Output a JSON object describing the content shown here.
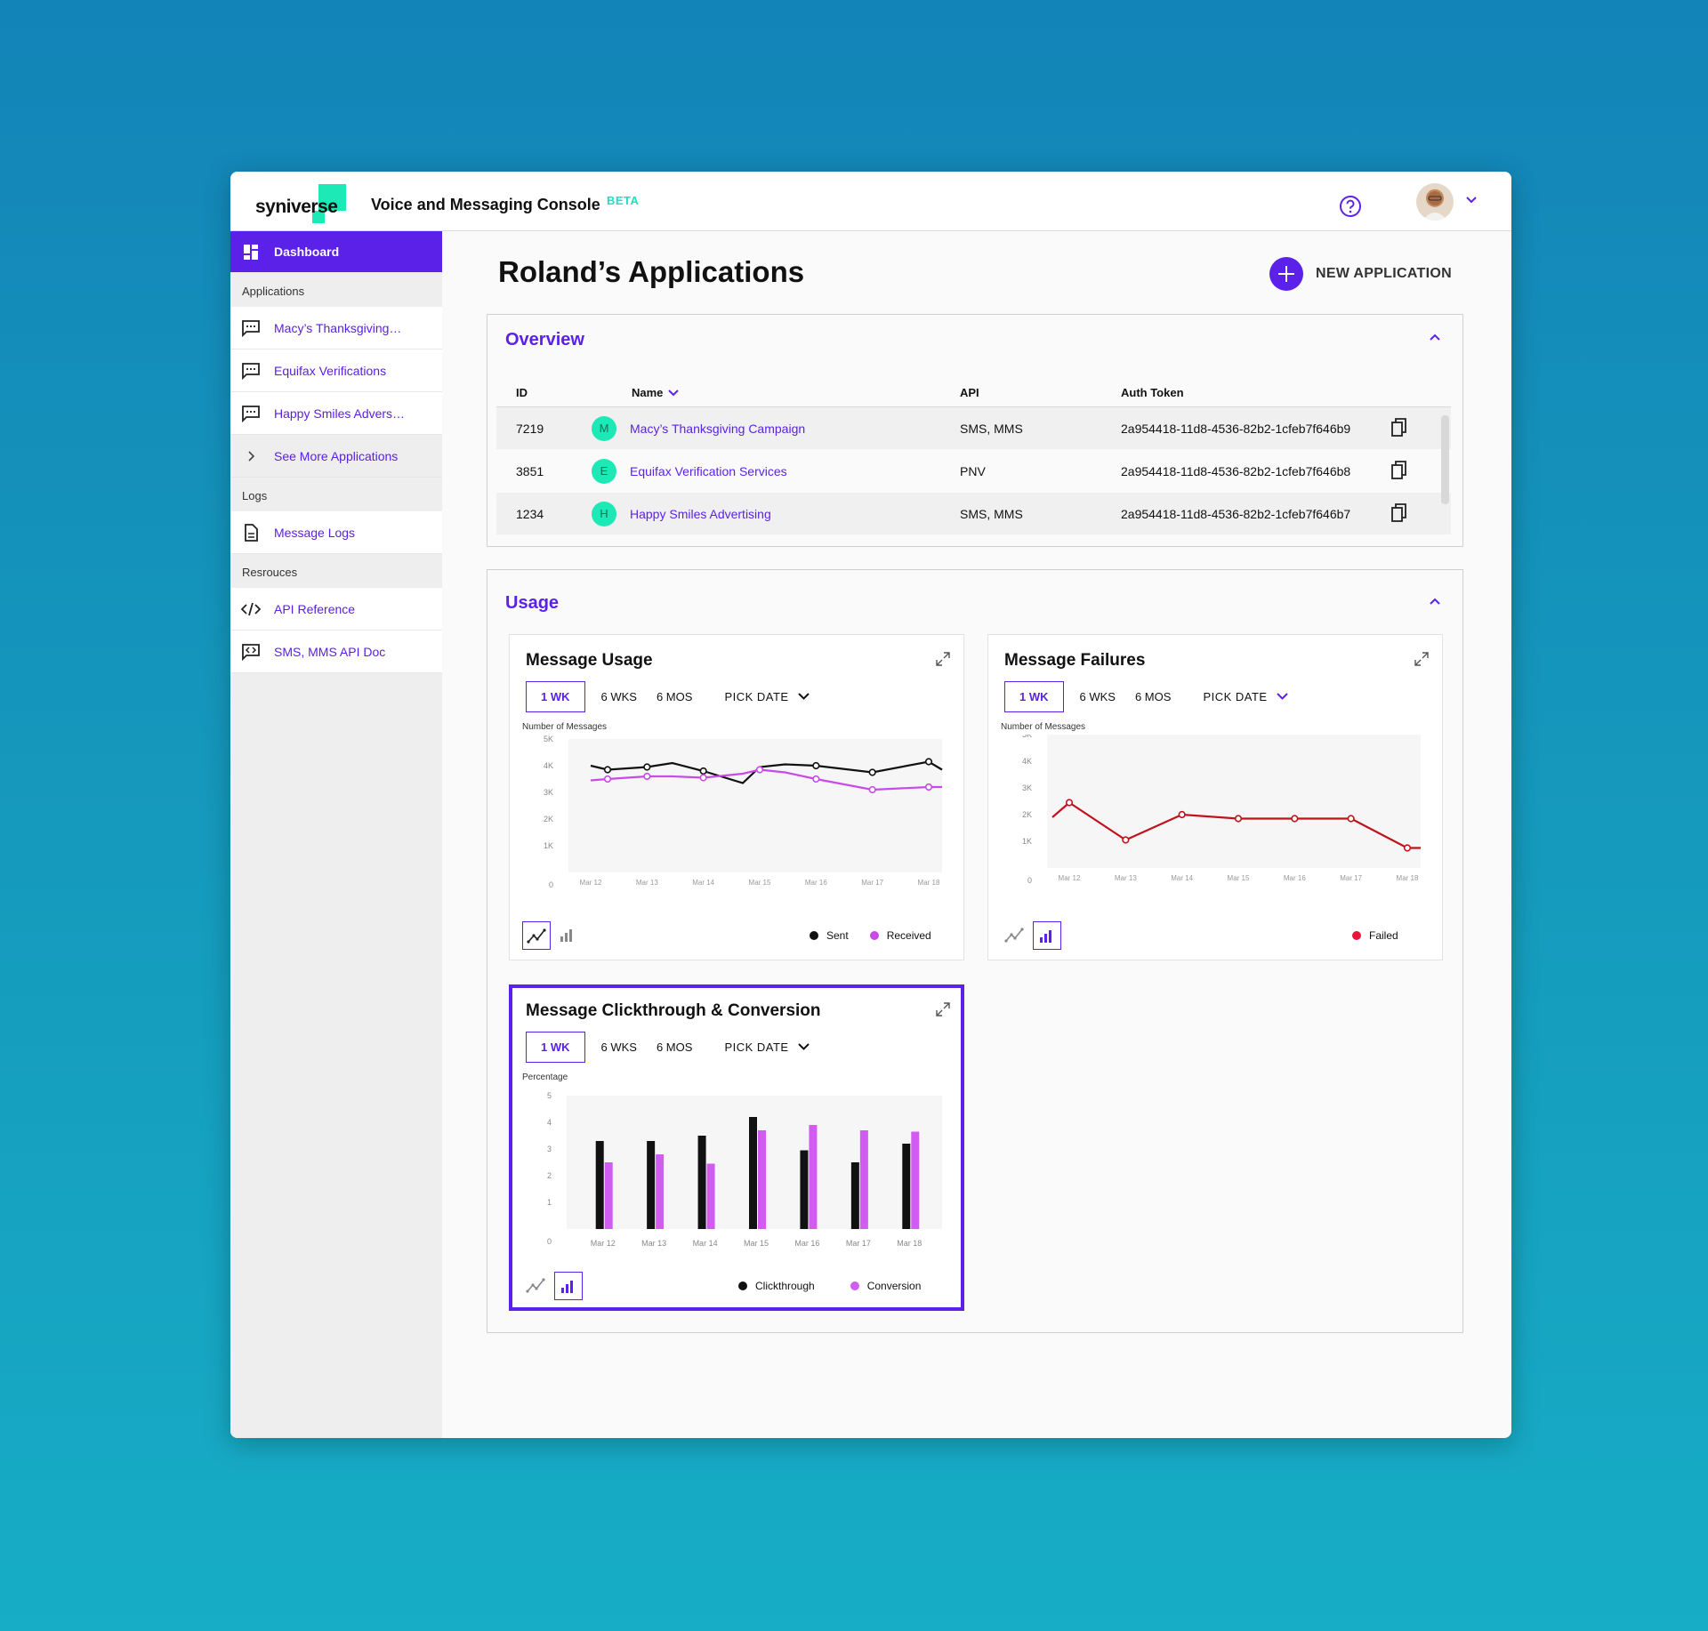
{
  "header": {
    "logo_text": "syniverse",
    "app_title": "Voice and Messaging Console",
    "beta_label": "BETA"
  },
  "sidebar": {
    "dashboard_label": "Dashboard",
    "applications_section": "Applications",
    "apps": [
      "Macy’s Thanksgiving…",
      "Equifax Verifications",
      "Happy Smiles Advers…"
    ],
    "see_more_label": "See More Applications",
    "logs_section": "Logs",
    "message_logs_label": "Message Logs",
    "resources_section": "Resrouces",
    "api_reference_label": "API Reference",
    "api_doc_label": "SMS, MMS API Doc"
  },
  "main": {
    "page_title": "Roland’s Applications",
    "new_app_label": "NEW APPLICATION"
  },
  "overview": {
    "title": "Overview",
    "columns": {
      "id": "ID",
      "name": "Name",
      "api": "API",
      "token": "Auth Token"
    },
    "rows": [
      {
        "id": "7219",
        "initial": "M",
        "name": "Macy’s Thanksgiving Campaign",
        "api": "SMS, MMS",
        "token": "2a954418-11d8-4536-82b2-1cfeb7f646b9"
      },
      {
        "id": "3851",
        "initial": "E",
        "name": "Equifax Verification Services",
        "api": "PNV",
        "token": "2a954418-11d8-4536-82b2-1cfeb7f646b8"
      },
      {
        "id": "1234",
        "initial": "H",
        "name": "Happy Smiles Advertising",
        "api": "SMS, MMS",
        "token": "2a954418-11d8-4536-82b2-1cfeb7f646b7"
      }
    ]
  },
  "usage": {
    "title": "Usage",
    "range_options": [
      "1 WK",
      "6 WKS",
      "6 MOS"
    ],
    "pick_date_label": "PICK DATE",
    "message_usage": {
      "title": "Message Usage",
      "y_axis_title": "Number of Messages",
      "legend": [
        "Sent",
        "Received"
      ]
    },
    "message_failures": {
      "title": "Message Failures",
      "y_axis_title": "Number of Messages",
      "legend": [
        "Failed"
      ]
    },
    "clickthrough": {
      "title": "Message Clickthrough & Conversion",
      "y_axis_title": "Percentage",
      "legend": [
        "Clickthrough",
        "Conversion"
      ]
    }
  },
  "colors": {
    "accent": "#5b21e8",
    "teal": "#1de9b6",
    "sent": "#111111",
    "received": "#c84be8",
    "failed": "#c0121b",
    "failed_legend": "#e8173a",
    "conversion": "#d15cf0"
  },
  "chart_data": [
    {
      "type": "line",
      "title": "Message Usage",
      "ylabel": "Number of Messages",
      "ylim": [
        0,
        5000
      ],
      "yticks": [
        "0",
        "1K",
        "2K",
        "3K",
        "4K",
        "5K"
      ],
      "categories": [
        "Mar 12",
        "Mar 13",
        "Mar 14",
        "Mar 15",
        "Mar 16",
        "Mar 17",
        "Mar 18"
      ],
      "x": [
        0,
        0.3,
        1,
        1.45,
        2,
        2.7,
        3,
        3.45,
        4,
        5,
        6,
        6.3
      ],
      "series": [
        {
          "name": "Sent",
          "color": "#111111",
          "values": [
            4000,
            3850,
            3950,
            4100,
            3800,
            3350,
            3950,
            4050,
            4000,
            3750,
            4150,
            3850
          ],
          "markers": [
            0.3,
            1,
            2,
            4,
            5,
            6
          ]
        },
        {
          "name": "Received",
          "color": "#c84be8",
          "values": [
            3450,
            3500,
            3600,
            3600,
            3550,
            3700,
            3850,
            3750,
            3500,
            3100,
            3200,
            3200
          ],
          "markers": [
            0.3,
            1,
            2,
            3,
            4,
            5,
            6
          ]
        }
      ]
    },
    {
      "type": "line",
      "title": "Message Failures",
      "ylabel": "Number of Messages",
      "ylim": [
        0,
        5000
      ],
      "yticks": [
        "0",
        "1K",
        "2K",
        "3K",
        "4K",
        "5K"
      ],
      "categories": [
        "Mar 12",
        "Mar 13",
        "Mar 14",
        "Mar 15",
        "Mar 16",
        "Mar 17",
        "Mar 18"
      ],
      "series": [
        {
          "name": "Failed",
          "color": "#c0121b",
          "x": [
            -0.3,
            0,
            1,
            2,
            3,
            4,
            5,
            6,
            6.3
          ],
          "values": [
            1900,
            2450,
            1050,
            2000,
            1850,
            1850,
            1850,
            750,
            750
          ],
          "markers": [
            0,
            1,
            2,
            3,
            4,
            5,
            6
          ]
        }
      ]
    },
    {
      "type": "bar",
      "title": "Message Clickthrough & Conversion",
      "ylabel": "Percentage",
      "ylim": [
        0,
        5
      ],
      "yticks": [
        "0",
        "1",
        "2",
        "3",
        "4",
        "5"
      ],
      "categories": [
        "Mar 12",
        "Mar 13",
        "Mar 14",
        "Mar 15",
        "Mar 16",
        "Mar 17",
        "Mar 18"
      ],
      "series": [
        {
          "name": "Clickthrough",
          "color": "#111111",
          "values": [
            3.3,
            3.3,
            3.5,
            4.2,
            2.95,
            2.5,
            3.2
          ]
        },
        {
          "name": "Conversion",
          "color": "#d15cf0",
          "values": [
            2.5,
            2.8,
            2.45,
            3.7,
            3.9,
            3.7,
            3.65
          ]
        }
      ]
    }
  ]
}
